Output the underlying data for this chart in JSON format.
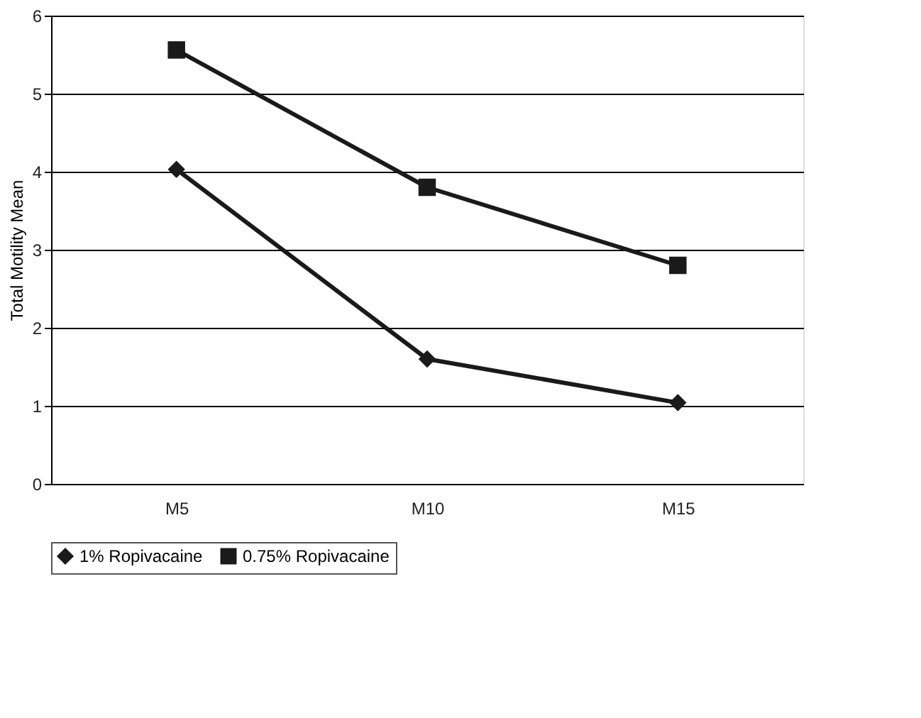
{
  "chart_data": {
    "type": "line",
    "ylabel": "Total Motility Mean",
    "categories": [
      "M5",
      "M10",
      "M15"
    ],
    "series": [
      {
        "name": "1% Ropivacaine",
        "color": "#1a1a1a",
        "marker": "diamond",
        "values": [
          4.03,
          1.6,
          1.04
        ]
      },
      {
        "name": "0.75% Ropivacaine",
        "color": "#1a1a1a",
        "marker": "square",
        "values": [
          5.56,
          3.8,
          2.8
        ]
      }
    ],
    "ylim": [
      0,
      6
    ],
    "yticks": [
      0,
      1,
      2,
      3,
      4,
      5,
      6
    ],
    "grid": "y",
    "legend": "bottom",
    "line_style": "solid"
  }
}
